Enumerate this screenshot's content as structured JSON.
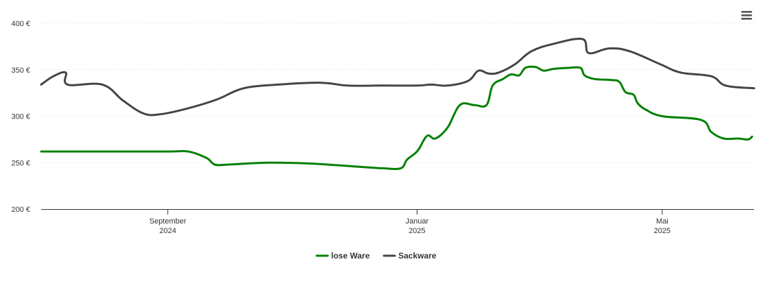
{
  "chart_data": {
    "type": "line",
    "title": "",
    "xlabel": "",
    "ylabel": "",
    "ylim": [
      200,
      400
    ],
    "y_ticks": [
      {
        "value": 200,
        "label": "200 €"
      },
      {
        "value": 250,
        "label": "250 €"
      },
      {
        "value": 300,
        "label": "300 €"
      },
      {
        "value": 350,
        "label": "350 €"
      },
      {
        "value": 400,
        "label": "400 €"
      }
    ],
    "x_range": [
      "2024-07-01",
      "2025-06-15"
    ],
    "x_ticks": [
      {
        "date": "2024-09-01",
        "line1": "September",
        "line2": "2024"
      },
      {
        "date": "2025-01-01",
        "line1": "Januar",
        "line2": "2025"
      },
      {
        "date": "2025-05-01",
        "line1": "Mai",
        "line2": "2025"
      }
    ],
    "grid": "horizontal",
    "legend_position": "bottom-center",
    "series": [
      {
        "name": "lose Ware",
        "color": "#008000",
        "points": [
          [
            "2024-07-01",
            262
          ],
          [
            "2024-08-01",
            262
          ],
          [
            "2024-09-01",
            262
          ],
          [
            "2024-09-11",
            262
          ],
          [
            "2024-09-20",
            255
          ],
          [
            "2024-09-24",
            248
          ],
          [
            "2024-10-01",
            248
          ],
          [
            "2024-10-20",
            250
          ],
          [
            "2024-11-10",
            249
          ],
          [
            "2024-12-01",
            246
          ],
          [
            "2024-12-15",
            244
          ],
          [
            "2024-12-24",
            244
          ],
          [
            "2024-12-27",
            253
          ],
          [
            "2024-12-31",
            260
          ],
          [
            "2025-01-02",
            265
          ],
          [
            "2025-01-06",
            279
          ],
          [
            "2025-01-10",
            276
          ],
          [
            "2025-01-16",
            288
          ],
          [
            "2025-01-22",
            312
          ],
          [
            "2025-01-29",
            312
          ],
          [
            "2025-02-04",
            312
          ],
          [
            "2025-02-07",
            333
          ],
          [
            "2025-02-12",
            340
          ],
          [
            "2025-02-16",
            345
          ],
          [
            "2025-02-20",
            344
          ],
          [
            "2025-02-23",
            352
          ],
          [
            "2025-02-28",
            353
          ],
          [
            "2025-03-04",
            349
          ],
          [
            "2025-03-09",
            351
          ],
          [
            "2025-03-16",
            352
          ],
          [
            "2025-03-22",
            352
          ],
          [
            "2025-03-24",
            344
          ],
          [
            "2025-03-29",
            340
          ],
          [
            "2025-04-06",
            339
          ],
          [
            "2025-04-10",
            337
          ],
          [
            "2025-04-13",
            326
          ],
          [
            "2025-04-17",
            323
          ],
          [
            "2025-04-19",
            314
          ],
          [
            "2025-04-23",
            307
          ],
          [
            "2025-05-01",
            300
          ],
          [
            "2025-05-20",
            296
          ],
          [
            "2025-05-25",
            283
          ],
          [
            "2025-05-31",
            276
          ],
          [
            "2025-06-07",
            276
          ],
          [
            "2025-06-12",
            275
          ],
          [
            "2025-06-14",
            278
          ]
        ]
      },
      {
        "name": "Sackware",
        "color": "#444444",
        "points": [
          [
            "2024-07-01",
            334
          ],
          [
            "2024-07-07",
            343
          ],
          [
            "2024-07-13",
            347
          ],
          [
            "2024-07-14",
            334
          ],
          [
            "2024-07-31",
            334
          ],
          [
            "2024-08-10",
            317
          ],
          [
            "2024-08-20",
            303
          ],
          [
            "2024-08-28",
            302
          ],
          [
            "2024-09-10",
            308
          ],
          [
            "2024-09-25",
            318
          ],
          [
            "2024-10-08",
            330
          ],
          [
            "2024-10-25",
            334
          ],
          [
            "2024-11-15",
            336
          ],
          [
            "2024-11-28",
            333
          ],
          [
            "2024-12-15",
            333
          ],
          [
            "2025-01-01",
            333
          ],
          [
            "2025-01-08",
            334
          ],
          [
            "2025-01-16",
            333
          ],
          [
            "2025-01-26",
            338
          ],
          [
            "2025-01-31",
            349
          ],
          [
            "2025-02-05",
            346
          ],
          [
            "2025-02-10",
            347
          ],
          [
            "2025-02-18",
            356
          ],
          [
            "2025-02-26",
            370
          ],
          [
            "2025-03-09",
            378
          ],
          [
            "2025-03-23",
            383
          ],
          [
            "2025-03-26",
            368
          ],
          [
            "2025-04-05",
            373
          ],
          [
            "2025-04-15",
            370
          ],
          [
            "2025-04-30",
            356
          ],
          [
            "2025-05-10",
            347
          ],
          [
            "2025-05-25",
            343
          ],
          [
            "2025-06-01",
            333
          ],
          [
            "2025-06-15",
            330
          ]
        ]
      }
    ]
  },
  "legend": {
    "items": [
      {
        "name": "lose Ware",
        "color": "#008000"
      },
      {
        "name": "Sackware",
        "color": "#444444"
      }
    ]
  },
  "menu_icon": "hamburger-menu-icon"
}
